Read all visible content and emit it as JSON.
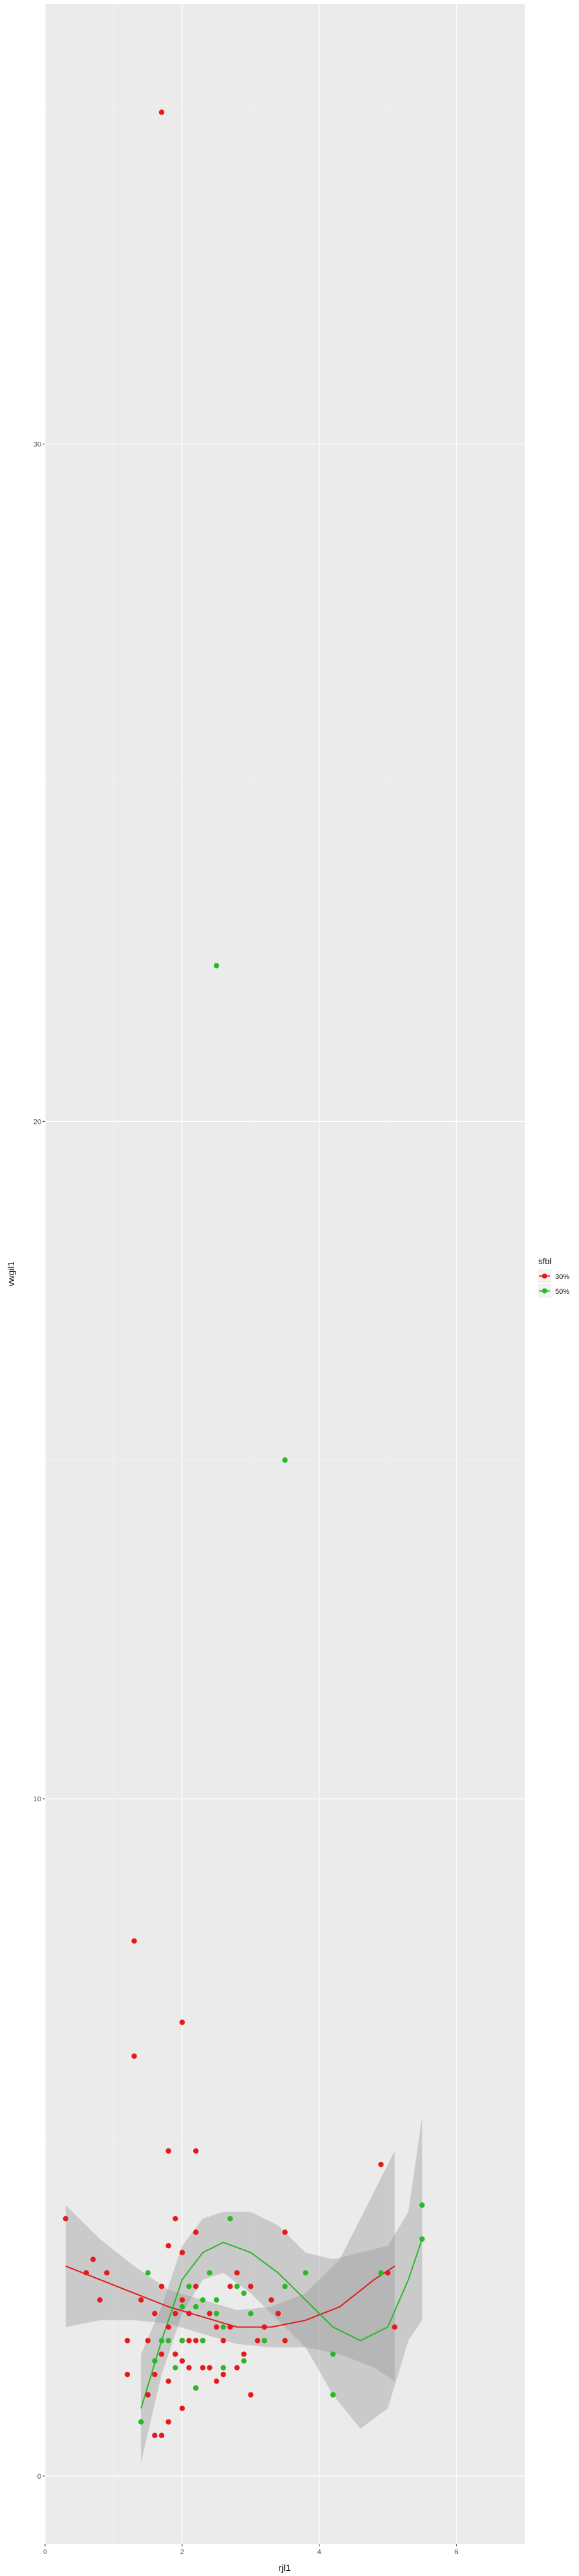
{
  "chart_data": {
    "type": "scatter",
    "xlabel": "rjl1",
    "ylabel": "vwgil1",
    "xlim": [
      0,
      7
    ],
    "ylim": [
      -1,
      36.5
    ],
    "xticks": [
      0,
      2,
      4,
      6
    ],
    "yticks": [
      0,
      10,
      20,
      30
    ],
    "grid": true,
    "background": "#ebebeb",
    "legend": {
      "title": "sfbl",
      "placement": "right"
    },
    "series": [
      {
        "name": "30%",
        "color": "#e41a1c",
        "x": [
          0.3,
          0.6,
          0.7,
          0.8,
          0.9,
          1.2,
          1.2,
          1.3,
          1.4,
          1.5,
          1.5,
          1.6,
          1.6,
          1.6,
          1.7,
          1.7,
          1.7,
          1.8,
          1.8,
          1.8,
          1.8,
          1.9,
          1.9,
          1.9,
          2.0,
          2.0,
          2.0,
          2.0,
          2.0,
          2.1,
          2.1,
          2.1,
          2.2,
          2.2,
          2.2,
          2.2,
          2.3,
          2.3,
          2.4,
          2.4,
          2.5,
          2.5,
          2.6,
          2.6,
          2.7,
          2.7,
          2.8,
          2.8,
          2.9,
          3.0,
          3.0,
          3.1,
          3.2,
          3.3,
          3.4,
          3.5,
          3.5,
          4.9,
          5.0,
          5.1,
          1.3,
          1.7,
          1.8,
          2.0,
          2.2
        ],
        "y": [
          3.8,
          3.0,
          3.2,
          2.6,
          3.0,
          2.0,
          1.5,
          6.2,
          2.6,
          1.2,
          2.0,
          0.6,
          1.5,
          2.4,
          1.8,
          0.6,
          2.8,
          2.2,
          1.4,
          0.8,
          3.4,
          1.8,
          2.4,
          3.8,
          1.7,
          2.0,
          3.3,
          1.0,
          2.6,
          2.0,
          1.6,
          2.4,
          1.3,
          2.8,
          2.0,
          3.6,
          2.0,
          1.6,
          2.4,
          1.6,
          2.2,
          1.4,
          2.0,
          1.5,
          2.8,
          2.2,
          1.6,
          3.0,
          1.8,
          2.8,
          1.2,
          2.0,
          2.2,
          2.6,
          2.4,
          3.6,
          2.0,
          4.6,
          3.0,
          2.2,
          7.9,
          34.9,
          4.8,
          6.7,
          4.8
        ]
      },
      {
        "name": "50%",
        "color": "#2ab82a",
        "x": [
          1.4,
          1.5,
          1.6,
          1.7,
          1.8,
          1.9,
          2.0,
          2.0,
          2.1,
          2.2,
          2.2,
          2.3,
          2.3,
          2.4,
          2.5,
          2.5,
          2.6,
          2.6,
          2.7,
          2.8,
          2.9,
          2.9,
          3.0,
          3.2,
          3.5,
          3.8,
          4.2,
          4.2,
          4.9,
          5.5,
          5.5,
          2.5,
          3.5
        ],
        "y": [
          0.8,
          3.0,
          1.7,
          2.0,
          2.0,
          1.6,
          2.5,
          2.0,
          2.8,
          2.5,
          1.3,
          2.0,
          2.6,
          3.0,
          2.4,
          2.6,
          1.6,
          2.2,
          3.8,
          2.8,
          1.7,
          2.7,
          2.4,
          2.0,
          2.8,
          3.0,
          1.8,
          1.2,
          3.0,
          3.5,
          4.0,
          22.3,
          15.0
        ]
      }
    ],
    "smooth_fits": [
      {
        "name": "30%",
        "x": [
          0.3,
          0.8,
          1.3,
          1.8,
          2.3,
          2.8,
          3.3,
          3.8,
          4.3,
          4.8,
          5.1
        ],
        "y": [
          3.1,
          2.9,
          2.7,
          2.5,
          2.35,
          2.2,
          2.2,
          2.3,
          2.5,
          2.9,
          3.1
        ],
        "lower": [
          2.2,
          2.3,
          2.3,
          2.25,
          2.1,
          1.95,
          1.9,
          1.9,
          1.8,
          1.6,
          1.4
        ],
        "upper": [
          4.0,
          3.5,
          3.1,
          2.75,
          2.6,
          2.45,
          2.5,
          2.7,
          3.2,
          4.2,
          4.8
        ]
      },
      {
        "name": "50%",
        "x": [
          1.4,
          1.7,
          2.0,
          2.3,
          2.6,
          3.0,
          3.4,
          3.8,
          4.2,
          4.6,
          5.0,
          5.3,
          5.5
        ],
        "y": [
          1.0,
          2.0,
          2.9,
          3.3,
          3.45,
          3.3,
          3.0,
          2.6,
          2.2,
          2.0,
          2.2,
          2.9,
          3.5
        ],
        "lower": [
          0.2,
          1.5,
          2.4,
          2.9,
          3.0,
          2.7,
          2.3,
          1.9,
          1.2,
          0.7,
          1.0,
          2.0,
          2.3
        ],
        "upper": [
          1.8,
          2.5,
          3.4,
          3.8,
          3.9,
          3.9,
          3.7,
          3.3,
          3.2,
          3.3,
          3.4,
          3.9,
          5.3
        ]
      }
    ]
  }
}
